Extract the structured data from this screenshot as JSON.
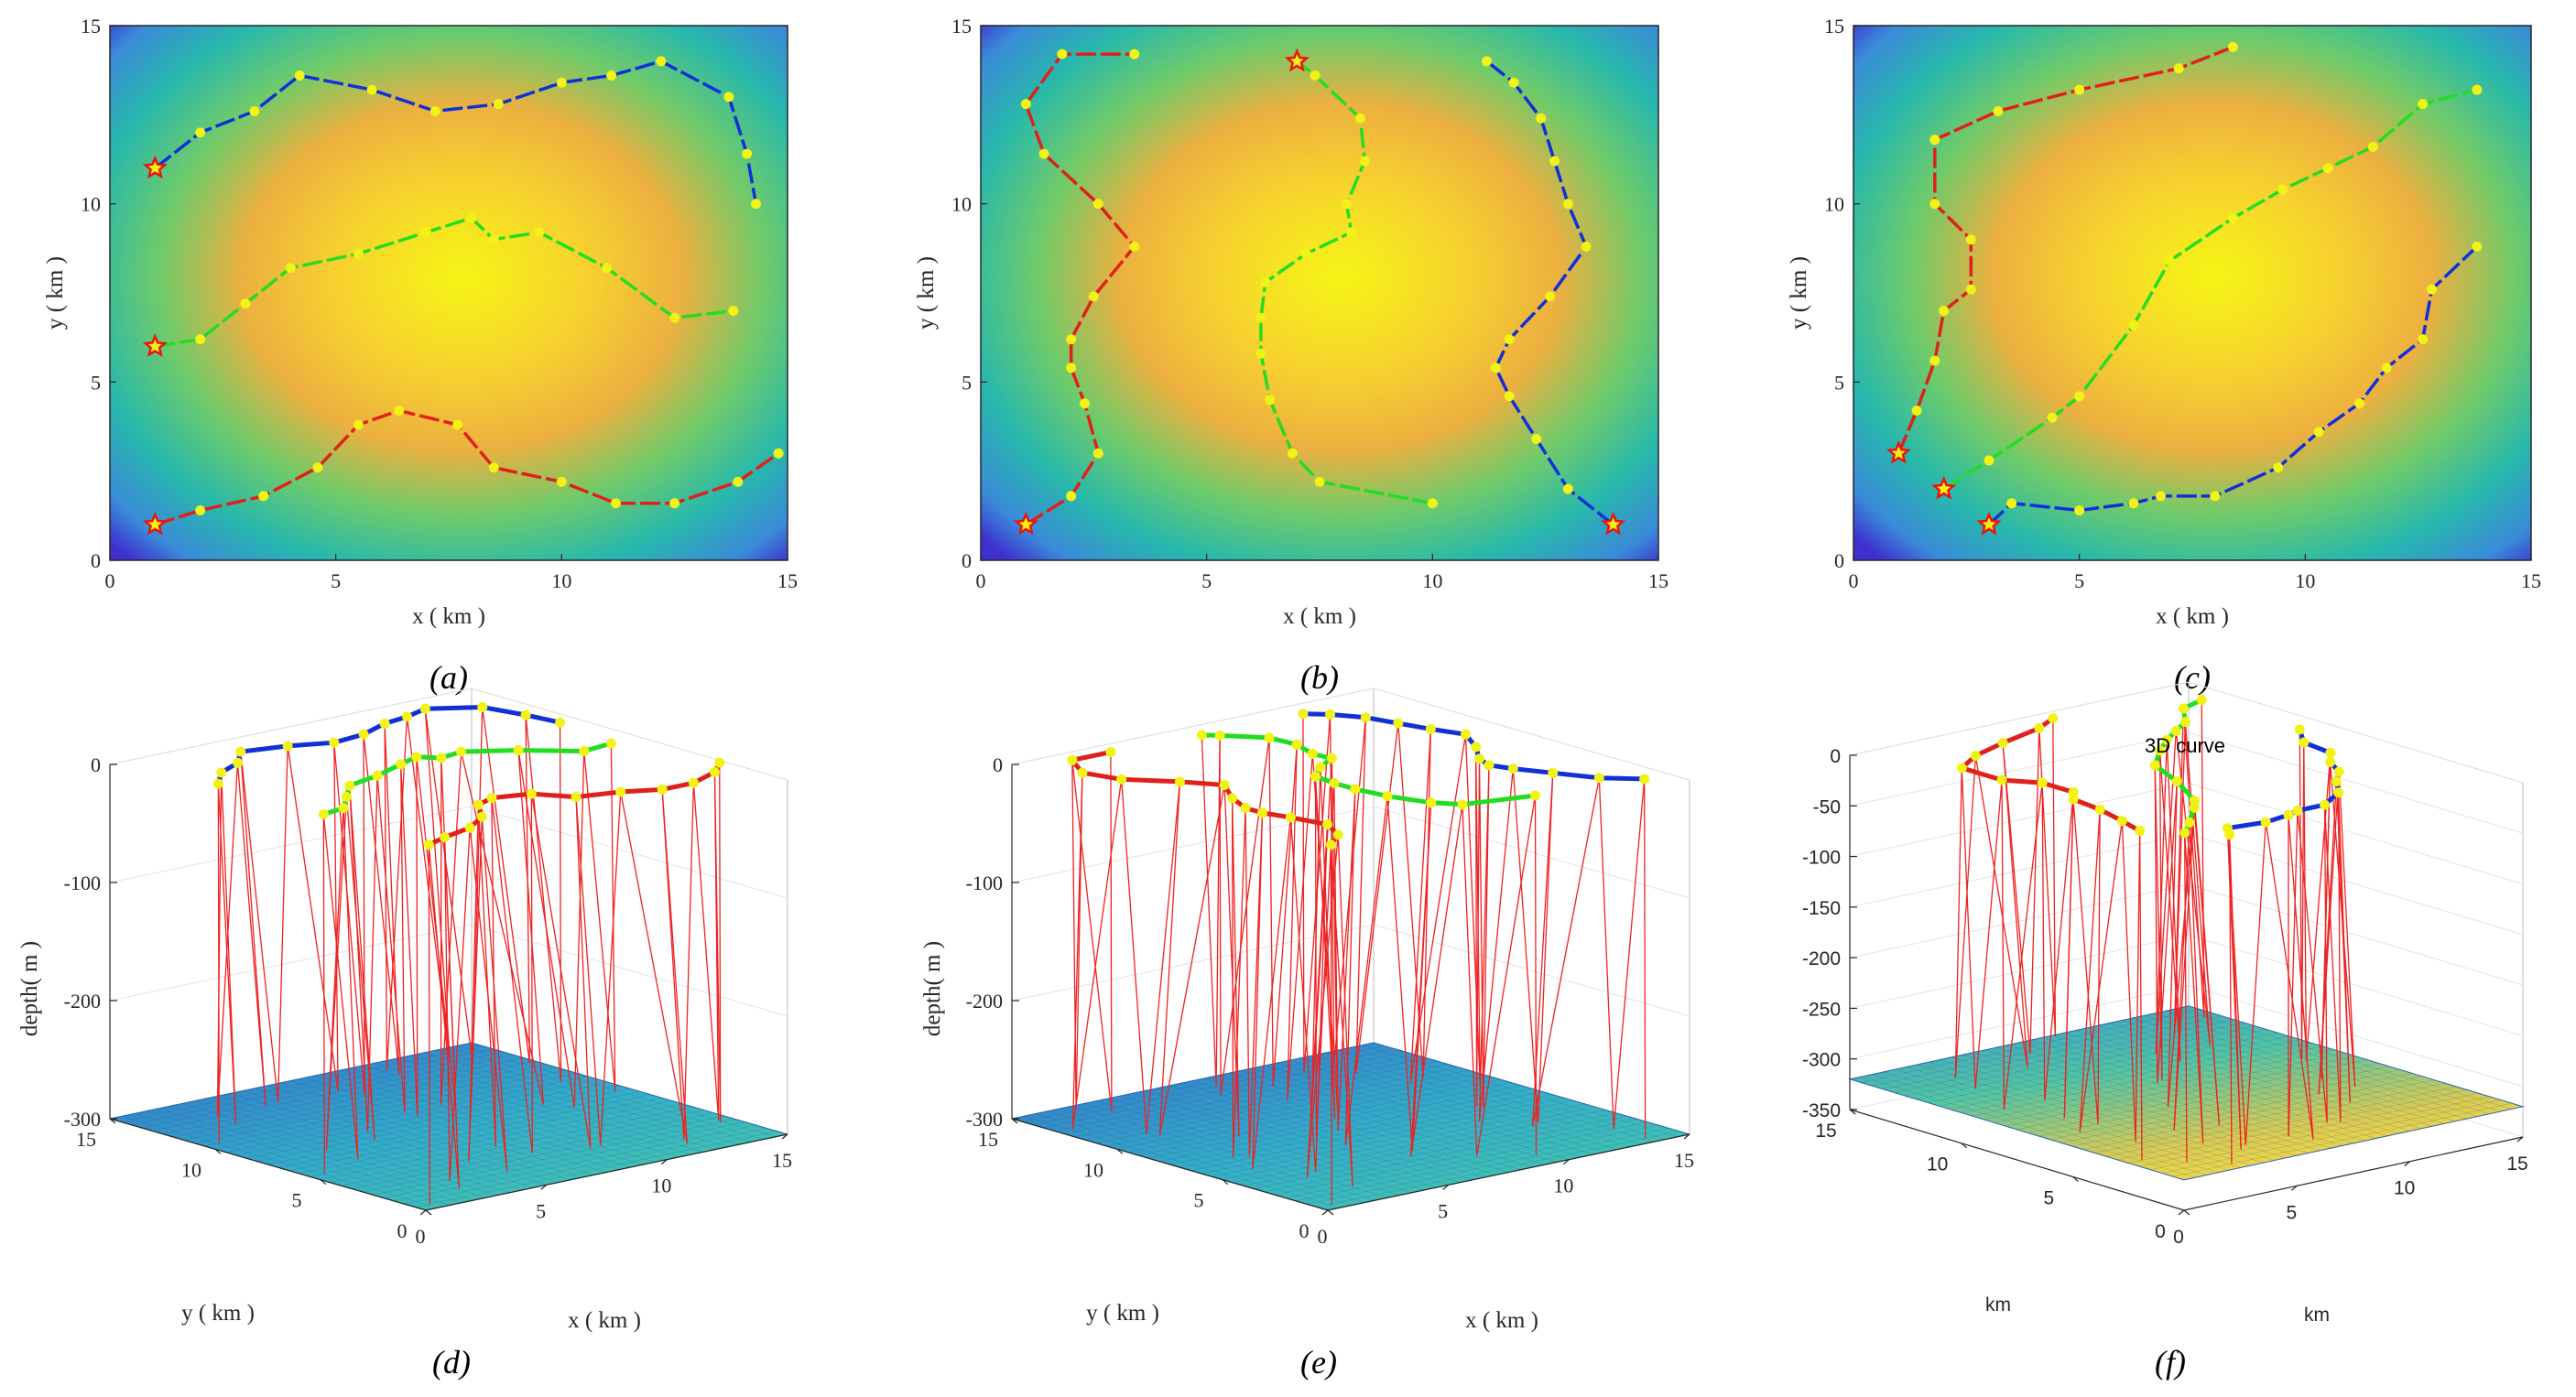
{
  "colors": {
    "red": "#e0201a",
    "green": "#22dd22",
    "blue": "#1030d8",
    "marker": "#f2f215",
    "star": "#ee1111",
    "string": "#ee2222",
    "axis": "#262626"
  },
  "chart_data": [
    {
      "type": "line",
      "panel_label": "(a)",
      "xlabel": "x ( km )",
      "ylabel": "y ( km )",
      "xlim": [
        0,
        15
      ],
      "ylim": [
        0,
        15
      ],
      "xticks": [
        "0",
        "5",
        "10",
        "15"
      ],
      "yticks": [
        "0",
        "5",
        "10",
        "15"
      ],
      "background": "radial heatmap, maximum near (7.5, 8)",
      "series": [
        {
          "name": "blue path",
          "color": "blue",
          "x": [
            1,
            2,
            3.2,
            4.2,
            5.8,
            7.2,
            8.6,
            10,
            11.1,
            12.2,
            13.7,
            14.1,
            14.3
          ],
          "y": [
            11,
            12,
            12.6,
            13.6,
            13.2,
            12.6,
            12.8,
            13.4,
            13.6,
            14,
            13,
            11.4,
            10
          ]
        },
        {
          "name": "green path",
          "color": "green",
          "x": [
            1,
            2,
            3,
            4,
            5.5,
            7,
            8,
            8.5,
            9.5,
            11,
            12.5,
            13.8
          ],
          "y": [
            6,
            6.2,
            7.2,
            8.2,
            8.6,
            9.2,
            9.6,
            9,
            9.2,
            8.2,
            6.8,
            7
          ]
        },
        {
          "name": "red path",
          "color": "red",
          "x": [
            1,
            2,
            3.4,
            4.6,
            5.5,
            6.4,
            7.7,
            8.5,
            10,
            11.2,
            12.5,
            13.9,
            14.8
          ],
          "y": [
            1,
            1.4,
            1.8,
            2.6,
            3.8,
            4.2,
            3.8,
            2.6,
            2.2,
            1.6,
            1.6,
            2.2,
            3
          ]
        }
      ],
      "start_points": [
        [
          1,
          11
        ],
        [
          1,
          6
        ],
        [
          1,
          1
        ]
      ]
    },
    {
      "type": "line",
      "panel_label": "(b)",
      "xlabel": "x ( km )",
      "ylabel": "y ( km )",
      "xlim": [
        0,
        15
      ],
      "ylim": [
        0,
        15
      ],
      "xticks": [
        "0",
        "5",
        "10",
        "15"
      ],
      "yticks": [
        "0",
        "5",
        "10",
        "15"
      ],
      "background": "radial heatmap, maximum near (8, 8)",
      "series": [
        {
          "name": "red path",
          "color": "red",
          "x": [
            1,
            2,
            2.6,
            2.3,
            2,
            2,
            2.5,
            3.4,
            2.6,
            1.4,
            1,
            1.8,
            3.4
          ],
          "y": [
            1,
            1.8,
            3,
            4.4,
            5.4,
            6.2,
            7.4,
            8.8,
            10,
            11.4,
            12.8,
            14.2,
            14.2
          ]
        },
        {
          "name": "green path",
          "color": "green",
          "x": [
            10,
            7.5,
            6.9,
            6.4,
            6.2,
            6.2,
            6.3,
            7.2,
            8.2,
            8.1,
            8.5,
            8.4,
            7.4,
            7
          ],
          "y": [
            1.6,
            2.2,
            3,
            4.5,
            5.8,
            6.8,
            7.8,
            8.6,
            9.2,
            10,
            11.2,
            12.4,
            13.6,
            14
          ]
        },
        {
          "name": "blue path",
          "color": "blue",
          "x": [
            14,
            13,
            12.3,
            11.7,
            11.4,
            11.7,
            12.6,
            13.4,
            13,
            12.7,
            12.4,
            11.8,
            11.2
          ],
          "y": [
            1,
            2,
            3.4,
            4.6,
            5.4,
            6.2,
            7.4,
            8.8,
            10,
            11.2,
            12.4,
            13.4,
            14
          ]
        }
      ],
      "start_points": [
        [
          1,
          1
        ],
        [
          7,
          14
        ],
        [
          14,
          1
        ]
      ]
    },
    {
      "type": "line",
      "panel_label": "(c)",
      "xlabel": "x ( km )",
      "ylabel": "y ( km )",
      "xlim": [
        0,
        15
      ],
      "ylim": [
        0,
        15
      ],
      "xticks": [
        "0",
        "5",
        "10",
        "15"
      ],
      "yticks": [
        "0",
        "5",
        "10",
        "15"
      ],
      "background": "radial heatmap, maximum near (8, 8)",
      "series": [
        {
          "name": "red path",
          "color": "red",
          "x": [
            1,
            1.4,
            1.8,
            2,
            2.6,
            2.6,
            1.8,
            1.8,
            3.2,
            5,
            7.2,
            8.4
          ],
          "y": [
            3,
            4.2,
            5.6,
            7,
            7.6,
            9,
            10,
            11.8,
            12.6,
            13.2,
            13.8,
            14.4
          ]
        },
        {
          "name": "green path",
          "color": "green",
          "x": [
            2,
            3,
            4.4,
            5,
            6.2,
            7,
            8.4,
            9.5,
            10.5,
            11.5,
            12.6,
            13.8
          ],
          "y": [
            2,
            2.8,
            4,
            4.6,
            6.6,
            8.4,
            9.6,
            10.4,
            11,
            11.6,
            12.8,
            13.2
          ]
        },
        {
          "name": "blue path",
          "color": "blue",
          "x": [
            3,
            3.5,
            5,
            6.2,
            6.8,
            8,
            9.4,
            10.3,
            11.2,
            11.8,
            12.6,
            12.8,
            13.8
          ],
          "y": [
            1,
            1.6,
            1.4,
            1.6,
            1.8,
            1.8,
            2.6,
            3.6,
            4.4,
            5.4,
            6.2,
            7.6,
            8.8
          ]
        }
      ],
      "start_points": [
        [
          3,
          1
        ],
        [
          2,
          2
        ],
        [
          1,
          3
        ]
      ]
    },
    {
      "type": "line3d",
      "panel_label": "(d)",
      "xlabel": "x ( km )",
      "ylabel": "y ( km )",
      "zlabel": "depth( m )",
      "xlim": [
        0,
        15
      ],
      "ylim": [
        0,
        15
      ],
      "zlim": [
        -300,
        0
      ],
      "xticks": [
        "0",
        "5",
        "10",
        "15"
      ],
      "yticks": [
        "0",
        "5",
        "10",
        "15"
      ],
      "zticks": [
        "0",
        "-100",
        "-200",
        "-300"
      ],
      "seabed_depth": -300,
      "series_ref": "paths from (a) drawn at depth 0 with red strings to seabed"
    },
    {
      "type": "line3d",
      "panel_label": "(e)",
      "xlabel": "x ( km )",
      "ylabel": "y ( km )",
      "zlabel": "depth( m )",
      "xlim": [
        0,
        15
      ],
      "ylim": [
        0,
        15
      ],
      "zlim": [
        -300,
        0
      ],
      "xticks": [
        "0",
        "5",
        "10",
        "15"
      ],
      "yticks": [
        "0",
        "5",
        "10",
        "15"
      ],
      "zticks": [
        "0",
        "-100",
        "-200",
        "-300"
      ],
      "seabed_depth": -300,
      "series_ref": "paths from (b) drawn at depth 0 with red strings to seabed"
    },
    {
      "type": "line3d",
      "panel_label": "(f)",
      "title": "3D curve",
      "xlabel": "km",
      "ylabel": "km",
      "zlabel": "",
      "xlim": [
        0,
        15
      ],
      "ylim": [
        0,
        15
      ],
      "zlim": [
        -350,
        0
      ],
      "xticks": [
        "0",
        "5",
        "10",
        "15"
      ],
      "yticks": [
        "0",
        "5",
        "10",
        "15"
      ],
      "zticks": [
        "0",
        "-50",
        "-100",
        "-150",
        "-200",
        "-250",
        "-300",
        "-350"
      ],
      "seabed_depth": -320,
      "series_ref": "paths from (c) drawn at depth 0 with red strings to seabed"
    }
  ]
}
